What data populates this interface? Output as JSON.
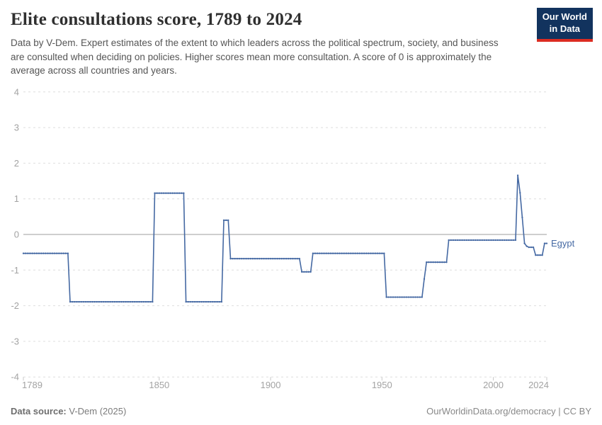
{
  "header": {
    "title": "Elite consultations score, 1789 to 2024",
    "subtitle": "Data by V-Dem. Expert estimates of the extent to which leaders across the political spectrum, society, and business are consulted when deciding on policies. Higher scores mean more consultation. A score of 0 is approximately the average across all countries and years.",
    "logo": {
      "line1": "Our World",
      "line2": "in Data",
      "bg_color": "#12335e",
      "stripe_color": "#dc2c22"
    }
  },
  "chart_data": {
    "type": "line",
    "title": "Elite consultations score, 1789 to 2024",
    "xlabel": "",
    "ylabel": "",
    "x_range": [
      1789,
      2024
    ],
    "ylim": [
      -4,
      4
    ],
    "x_ticks": [
      1789,
      1850,
      1900,
      1950,
      2000,
      2024
    ],
    "y_ticks": [
      4,
      3,
      2,
      1,
      0,
      -1,
      -2,
      -3,
      -4
    ],
    "grid": "horizontal dashed gridlines, solid line at 0",
    "legend_position": "label at end of line",
    "line_style": "stepped yearly values with small dot markers",
    "colors": {
      "line": "#4569a3",
      "gridline": "#dedede",
      "zero_line": "#9e9e9e",
      "axis_text": "#a3a3a3"
    },
    "series": [
      {
        "name": "Egypt",
        "color": "#4569a3",
        "step_segments": [
          {
            "from": 1789,
            "to": 1809,
            "value": -0.53
          },
          {
            "from": 1810,
            "to": 1847,
            "value": -1.89
          },
          {
            "from": 1848,
            "to": 1861,
            "value": 1.16
          },
          {
            "from": 1862,
            "to": 1878,
            "value": -1.89
          },
          {
            "from": 1879,
            "to": 1881,
            "value": 0.4
          },
          {
            "from": 1882,
            "to": 1913,
            "value": -0.68
          },
          {
            "from": 1914,
            "to": 1918,
            "value": -1.05
          },
          {
            "from": 1919,
            "to": 1951,
            "value": -0.53
          },
          {
            "from": 1952,
            "to": 1968,
            "value": -1.76
          },
          {
            "from": 1969,
            "to": 1969,
            "value": -1.25
          },
          {
            "from": 1970,
            "to": 1979,
            "value": -0.78
          },
          {
            "from": 1980,
            "to": 2010,
            "value": -0.16
          },
          {
            "from": 2011,
            "to": 2011,
            "value": 1.66
          },
          {
            "from": 2012,
            "to": 2012,
            "value": 1.17
          },
          {
            "from": 2013,
            "to": 2013,
            "value": 0.48
          },
          {
            "from": 2014,
            "to": 2014,
            "value": -0.25
          },
          {
            "from": 2015,
            "to": 2015,
            "value": -0.33
          },
          {
            "from": 2016,
            "to": 2018,
            "value": -0.36
          },
          {
            "from": 2019,
            "to": 2022,
            "value": -0.58
          },
          {
            "from": 2023,
            "to": 2024,
            "value": -0.25
          }
        ]
      }
    ]
  },
  "footer": {
    "source_label": "Data source:",
    "source_value": " V-Dem (2025)",
    "rights": "OurWorldinData.org/democracy | CC BY"
  }
}
